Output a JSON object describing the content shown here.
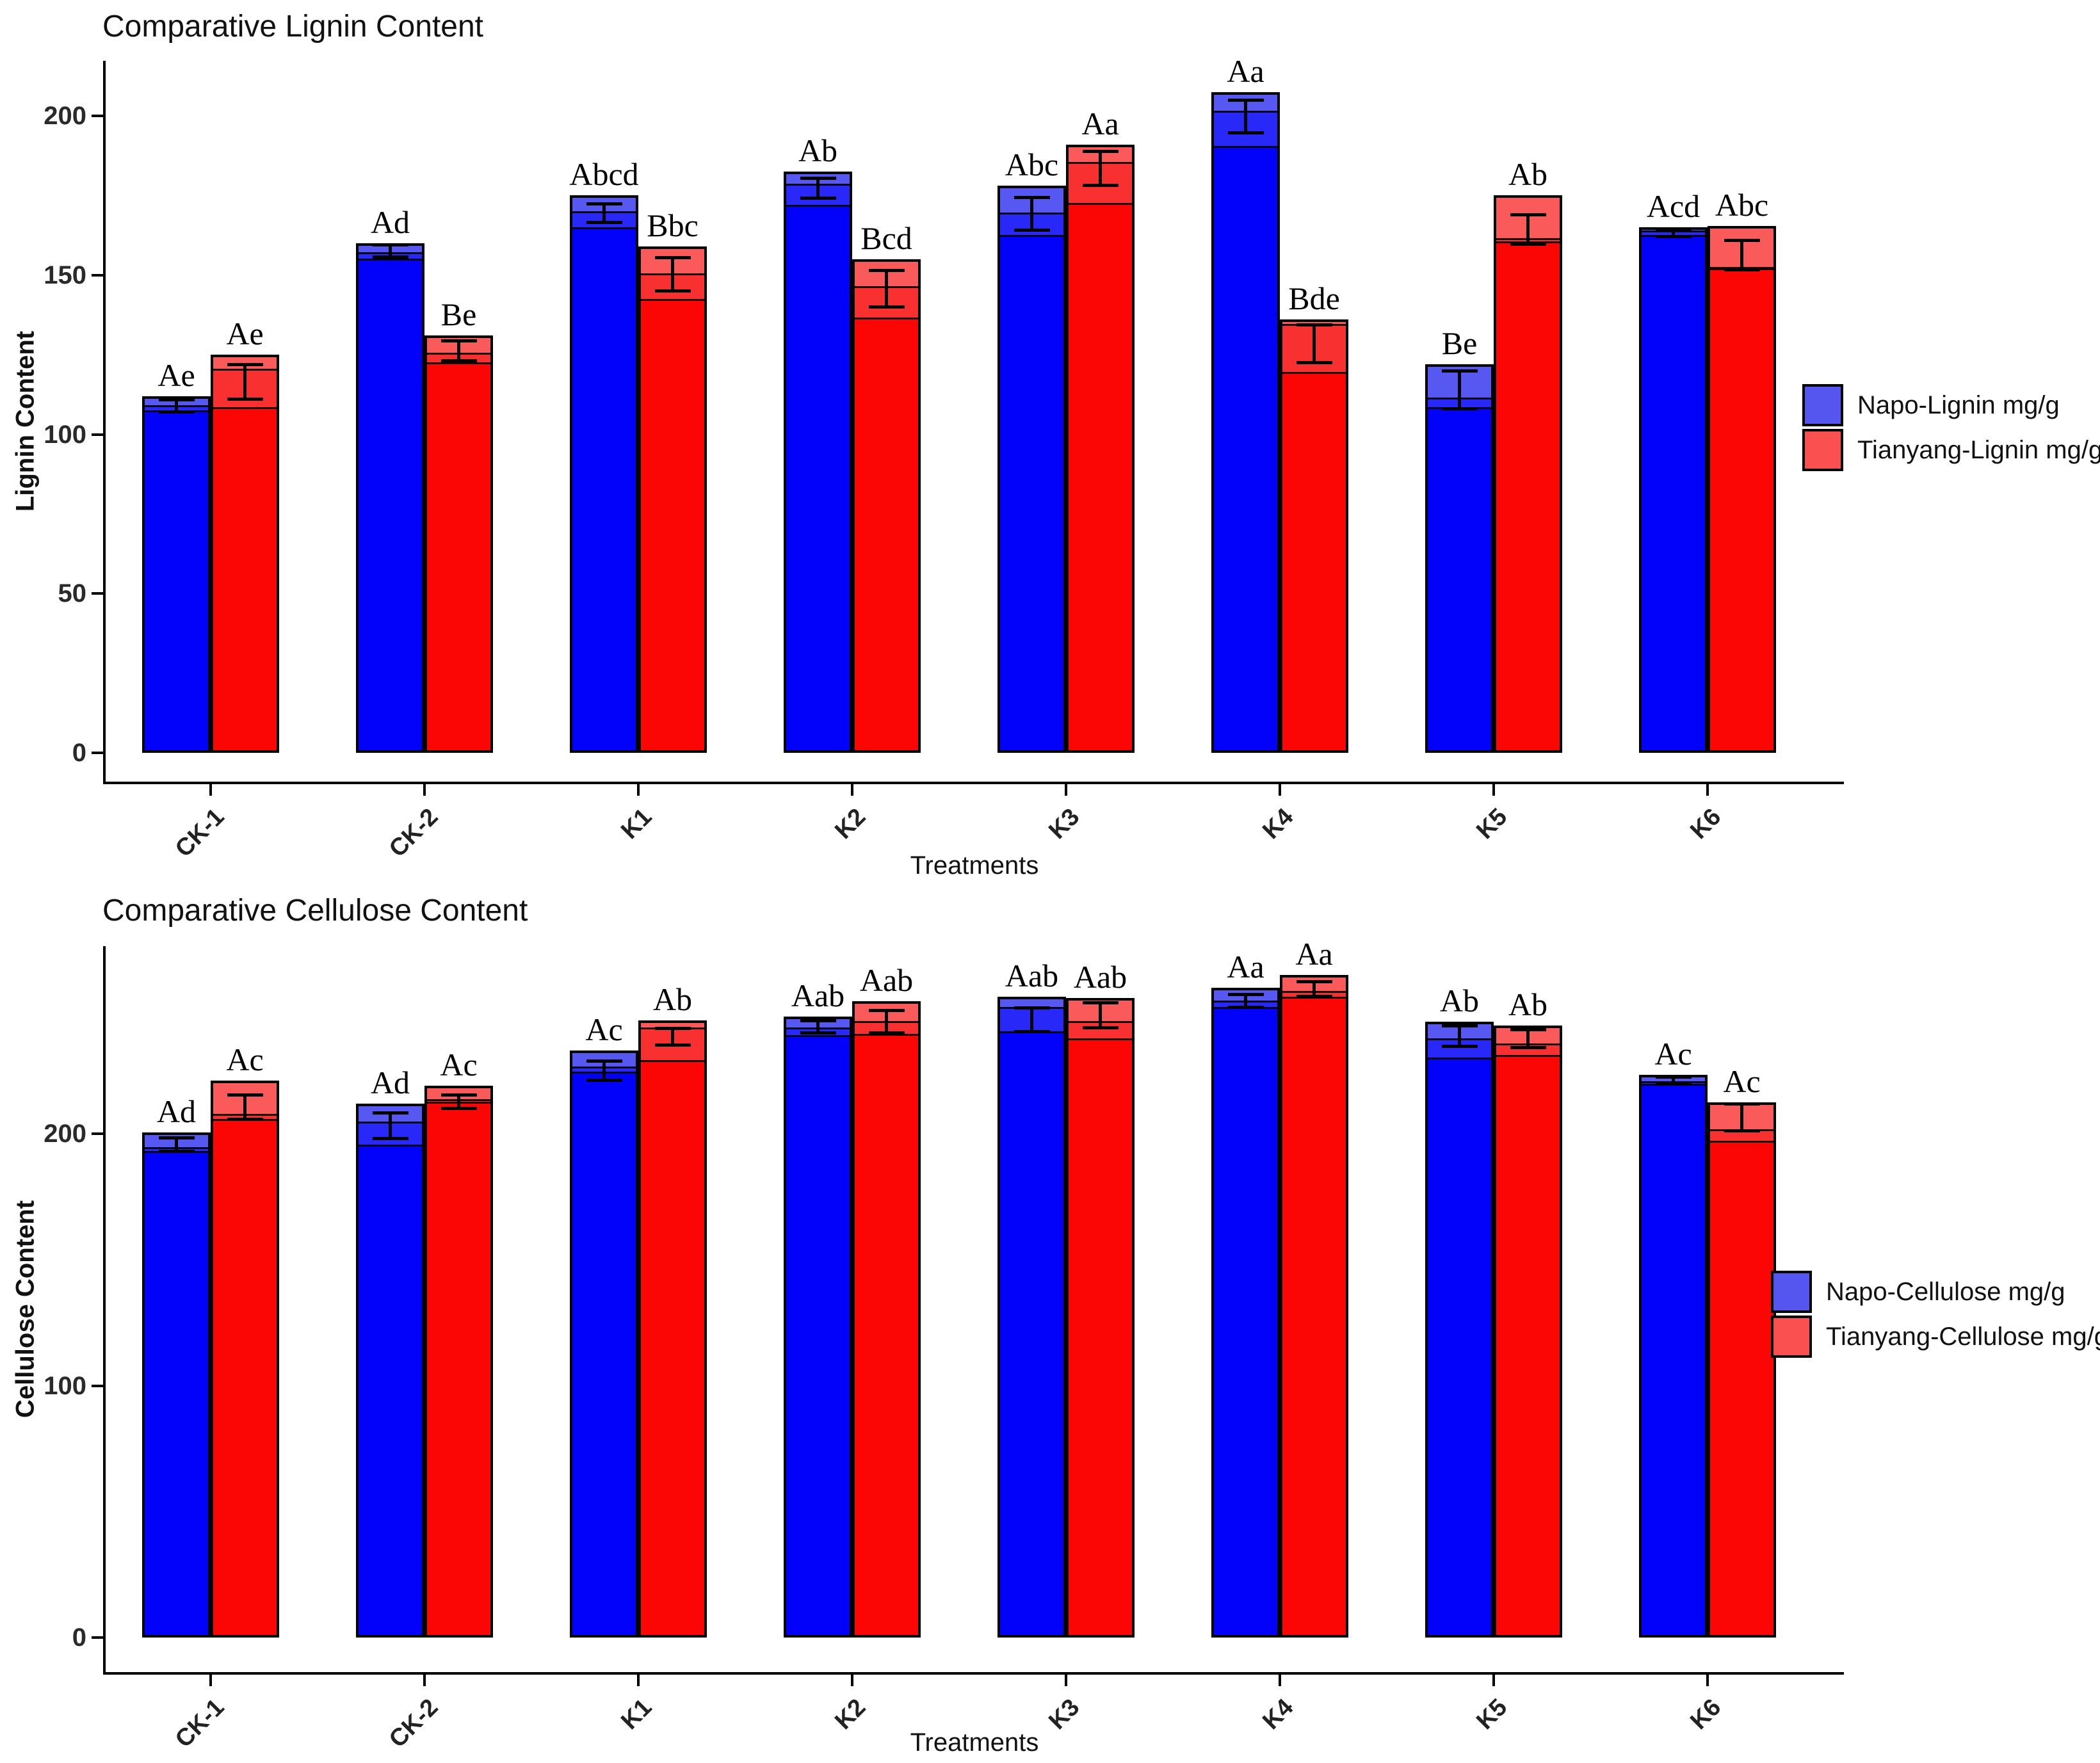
{
  "chart_data": [
    {
      "type": "bar",
      "title": "Comparative Lignin Content",
      "ylabel": "Lignin Content",
      "xlabel": "Treatments",
      "ylim": [
        0,
        216
      ],
      "yticks": [
        0,
        50,
        100,
        150,
        200
      ],
      "grid": false,
      "legend_position": "right",
      "categories": [
        "CK-1",
        "CK-2",
        "K1",
        "K2",
        "K3",
        "K4",
        "K5",
        "K6"
      ],
      "series": [
        {
          "name": "Napo-Lignin mg/g",
          "color_light": "#5757F2",
          "color_mid": "#2828F8",
          "color_solid": "#0202FA",
          "bars": [
            {
              "reps": [
                112,
                108.5,
                107
              ],
              "err": [
                107,
                111
              ],
              "letter": "Ae"
            },
            {
              "reps": [
                160,
                156.5,
                154.5
              ],
              "err": [
                155.5,
                159.5
              ],
              "letter": "Ad"
            },
            {
              "reps": [
                175,
                169.5,
                164.5
              ],
              "err": [
                166.5,
                172.5
              ],
              "letter": "Abcd"
            },
            {
              "reps": [
                182.5,
                178,
                171.5
              ],
              "err": [
                174,
                180.5
              ],
              "letter": "Ab"
            },
            {
              "reps": [
                178,
                169,
                162
              ],
              "err": [
                164,
                174.5
              ],
              "letter": "Abc"
            },
            {
              "reps": [
                207.5,
                201,
                190
              ],
              "err": [
                194.5,
                205
              ],
              "letter": "Aa"
            },
            {
              "reps": [
                122,
                111,
                108
              ],
              "err": [
                108,
                120
              ],
              "letter": "Be"
            },
            {
              "reps": [
                165,
                163.5,
                162
              ],
              "err": [
                162,
                164.5
              ],
              "letter": "Acd"
            }
          ]
        },
        {
          "name": "Tianyang-Lignin mg/g",
          "color_light": "#FA5A5A",
          "color_mid": "#F83030",
          "color_solid": "#FB0505",
          "bars": [
            {
              "reps": [
                125,
                120,
                108
              ],
              "err": [
                111,
                122
              ],
              "letter": "Ae"
            },
            {
              "reps": [
                131,
                125,
                122
              ],
              "err": [
                123,
                129.5
              ],
              "letter": "Be"
            },
            {
              "reps": [
                159,
                150,
                142
              ],
              "err": [
                145,
                155.5
              ],
              "letter": "Bbc"
            },
            {
              "reps": [
                155,
                146,
                136
              ],
              "err": [
                140,
                151.5
              ],
              "letter": "Bcd"
            },
            {
              "reps": [
                191,
                185,
                172
              ],
              "err": [
                178,
                189
              ],
              "letter": "Aa"
            },
            {
              "reps": [
                136,
                134,
                119
              ],
              "err": [
                122.5,
                134.5
              ],
              "letter": "Bde"
            },
            {
              "reps": [
                175,
                161,
                160
              ],
              "err": [
                159.5,
                169
              ],
              "letter": "Ab"
            },
            {
              "reps": [
                165.5,
                152,
                151.5
              ],
              "err": [
                151.5,
                161
              ],
              "letter": "Abc"
            }
          ]
        }
      ],
      "legend": [
        {
          "label": "Napo-Lignin mg/g",
          "color": "#5555F0"
        },
        {
          "label": "Tianyang-Lignin mg/g",
          "color": "#FA5050"
        }
      ]
    },
    {
      "type": "bar",
      "title": "Comparative Cellulose Content",
      "ylabel": "Cellulose Content",
      "xlabel": "Treatments",
      "ylim": [
        0,
        288
      ],
      "yticks": [
        0,
        100,
        200
      ],
      "grid": false,
      "legend_position": "right",
      "categories": [
        "CK-1",
        "CK-2",
        "K1",
        "K2",
        "K3",
        "K4",
        "K5",
        "K6"
      ],
      "series": [
        {
          "name": "Napo-Cellulose mg/g",
          "color_light": "#5757F2",
          "color_mid": "#2828F8",
          "color_solid": "#0202FA",
          "bars": [
            {
              "reps": [
                200.5,
                194,
                192.5
              ],
              "err": [
                193,
                198.5
              ],
              "letter": "Ad"
            },
            {
              "reps": [
                212,
                204,
                195
              ],
              "err": [
                198,
                208.5
              ],
              "letter": "Ad"
            },
            {
              "reps": [
                233,
                226,
                224
              ],
              "err": [
                221,
                229
              ],
              "letter": "Ac"
            },
            {
              "reps": [
                246.5,
                241.5,
                238.5
              ],
              "err": [
                240,
                245
              ],
              "letter": "Aab"
            },
            {
              "reps": [
                254.5,
                249.5,
                240
              ],
              "err": [
                240.5,
                250
              ],
              "letter": "Aab"
            },
            {
              "reps": [
                258,
                252,
                249.5
              ],
              "err": [
                250,
                255.5
              ],
              "letter": "Aa"
            },
            {
              "reps": [
                244.5,
                237,
                229.5
              ],
              "err": [
                234.5,
                243
              ],
              "letter": "Ab"
            },
            {
              "reps": [
                223.5,
                220,
                219
              ],
              "err": [
                219.5,
                222.5
              ],
              "letter": "Ac"
            }
          ]
        },
        {
          "name": "Tianyang-Cellulose mg/g",
          "color_light": "#FA5A5A",
          "color_mid": "#F83030",
          "color_solid": "#FB0505",
          "bars": [
            {
              "reps": [
                221,
                207,
                205
              ],
              "err": [
                205.5,
                215.5
              ],
              "letter": "Ac"
            },
            {
              "reps": [
                219,
                213,
                212
              ],
              "err": [
                210,
                215.5
              ],
              "letter": "Ac"
            },
            {
              "reps": [
                245,
                241.5,
                228.5
              ],
              "err": [
                235,
                242
              ],
              "letter": "Ab"
            },
            {
              "reps": [
                252.5,
                244,
                239
              ],
              "err": [
                240,
                249
              ],
              "letter": "Aab"
            },
            {
              "reps": [
                254,
                244,
                237
              ],
              "err": [
                242,
                252
              ],
              "letter": "Aab"
            },
            {
              "reps": [
                263,
                256,
                253.5
              ],
              "err": [
                254.5,
                260.5
              ],
              "letter": "Aa"
            },
            {
              "reps": [
                243,
                235,
                230.5
              ],
              "err": [
                234,
                241.5
              ],
              "letter": "Ab"
            },
            {
              "reps": [
                212.5,
                201,
                196.5
              ],
              "err": [
                201,
                212
              ],
              "letter": "Ac"
            }
          ]
        }
      ],
      "legend": [
        {
          "label": "Napo-Cellulose mg/g",
          "color": "#5555F0"
        },
        {
          "label": "Tianyang-Cellulose mg/g",
          "color": "#FA5050"
        }
      ]
    }
  ]
}
